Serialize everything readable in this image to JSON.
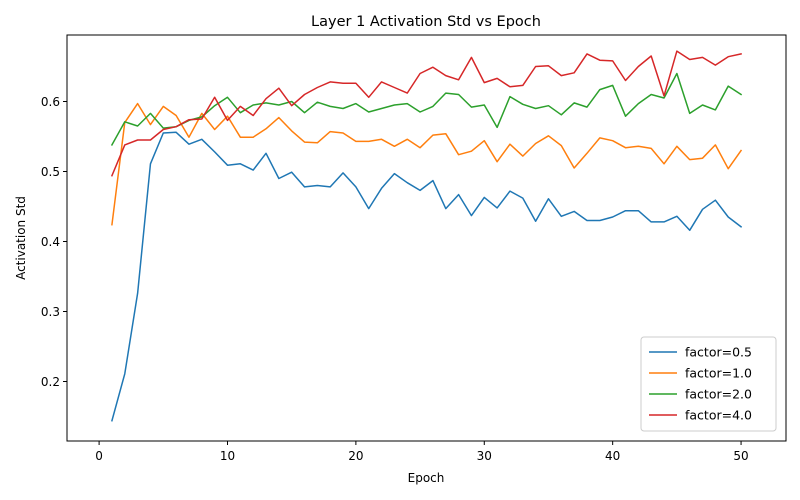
{
  "chart_data": {
    "type": "line",
    "title": "Layer 1 Activation Std vs Epoch",
    "xlabel": "Epoch",
    "ylabel": "Activation Std",
    "xlim": [
      -2.5,
      53.5
    ],
    "ylim": [
      0.115,
      0.695
    ],
    "xticks": [
      0,
      10,
      20,
      30,
      40,
      50
    ],
    "yticks": [
      0.2,
      0.3,
      0.4,
      0.5,
      0.6
    ],
    "grid": false,
    "legend_position": "lower-right",
    "x": [
      1,
      2,
      3,
      4,
      5,
      6,
      7,
      8,
      9,
      10,
      11,
      12,
      13,
      14,
      15,
      16,
      17,
      18,
      19,
      20,
      21,
      22,
      23,
      24,
      25,
      26,
      27,
      28,
      29,
      30,
      31,
      32,
      33,
      34,
      35,
      36,
      37,
      38,
      39,
      40,
      41,
      42,
      43,
      44,
      45,
      46,
      47,
      48,
      49,
      50
    ],
    "series": [
      {
        "name": "factor=0.5",
        "color": "#1f77b4",
        "values": [
          0.144,
          0.211,
          0.326,
          0.511,
          0.555,
          0.556,
          0.539,
          0.546,
          0.528,
          0.509,
          0.511,
          0.502,
          0.526,
          0.49,
          0.499,
          0.478,
          0.48,
          0.478,
          0.498,
          0.478,
          0.447,
          0.476,
          0.497,
          0.484,
          0.473,
          0.487,
          0.447,
          0.467,
          0.437,
          0.463,
          0.448,
          0.472,
          0.462,
          0.429,
          0.461,
          0.436,
          0.443,
          0.43,
          0.43,
          0.435,
          0.444,
          0.444,
          0.428,
          0.428,
          0.436,
          0.416,
          0.446,
          0.459,
          0.435,
          0.421
        ]
      },
      {
        "name": "factor=1.0",
        "color": "#ff7f0e",
        "values": [
          0.424,
          0.57,
          0.597,
          0.567,
          0.593,
          0.58,
          0.549,
          0.583,
          0.56,
          0.579,
          0.549,
          0.549,
          0.561,
          0.577,
          0.558,
          0.542,
          0.541,
          0.557,
          0.555,
          0.543,
          0.543,
          0.546,
          0.536,
          0.546,
          0.534,
          0.552,
          0.554,
          0.524,
          0.529,
          0.544,
          0.514,
          0.539,
          0.522,
          0.54,
          0.551,
          0.537,
          0.505,
          0.526,
          0.548,
          0.544,
          0.534,
          0.536,
          0.533,
          0.511,
          0.536,
          0.517,
          0.519,
          0.538,
          0.504,
          0.53
        ]
      },
      {
        "name": "factor=2.0",
        "color": "#2ca02c",
        "values": [
          0.538,
          0.571,
          0.565,
          0.583,
          0.562,
          0.564,
          0.573,
          0.578,
          0.594,
          0.606,
          0.584,
          0.595,
          0.598,
          0.595,
          0.6,
          0.584,
          0.599,
          0.593,
          0.59,
          0.597,
          0.585,
          0.59,
          0.595,
          0.597,
          0.585,
          0.593,
          0.612,
          0.61,
          0.592,
          0.595,
          0.563,
          0.607,
          0.596,
          0.59,
          0.594,
          0.581,
          0.598,
          0.592,
          0.617,
          0.623,
          0.579,
          0.597,
          0.61,
          0.605,
          0.64,
          0.583,
          0.595,
          0.588,
          0.622,
          0.61
        ]
      },
      {
        "name": "factor=4.0",
        "color": "#d62728",
        "values": [
          0.494,
          0.538,
          0.545,
          0.545,
          0.56,
          0.564,
          0.574,
          0.575,
          0.606,
          0.573,
          0.593,
          0.58,
          0.604,
          0.619,
          0.594,
          0.61,
          0.62,
          0.628,
          0.626,
          0.626,
          0.606,
          0.628,
          0.62,
          0.612,
          0.64,
          0.649,
          0.637,
          0.631,
          0.663,
          0.627,
          0.633,
          0.621,
          0.623,
          0.65,
          0.651,
          0.637,
          0.641,
          0.668,
          0.659,
          0.658,
          0.63,
          0.65,
          0.665,
          0.608,
          0.672,
          0.66,
          0.663,
          0.652,
          0.664,
          0.668
        ]
      }
    ]
  }
}
